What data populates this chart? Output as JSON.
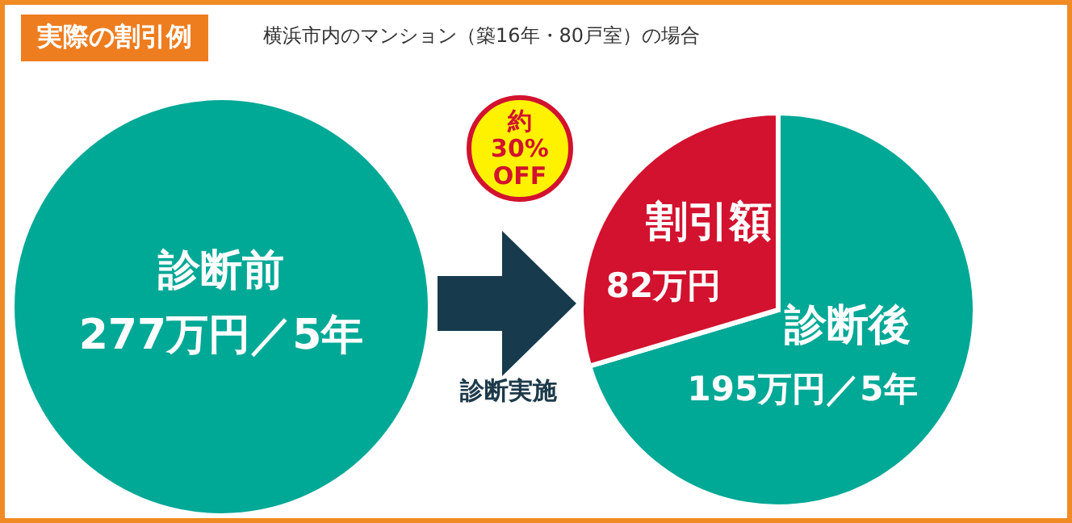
{
  "chart_data": [
    {
      "type": "pie",
      "title": "実際の割引例",
      "subtitle": "横浜市内のマンション（築16年・80戸室）の場合",
      "categories": [
        "診断前"
      ],
      "values": [
        277
      ],
      "colors": [
        "#00a896"
      ],
      "value_labels": [
        "277万円／5年"
      ]
    },
    {
      "type": "pie",
      "categories": [
        "診断後",
        "割引額"
      ],
      "values": [
        195,
        82
      ],
      "colors": [
        "#00a896",
        "#d2122e"
      ],
      "value_labels": [
        "195万円／5年",
        "82万円"
      ],
      "annotations": [
        "約30% OFF",
        "診断実施"
      ]
    }
  ]
}
